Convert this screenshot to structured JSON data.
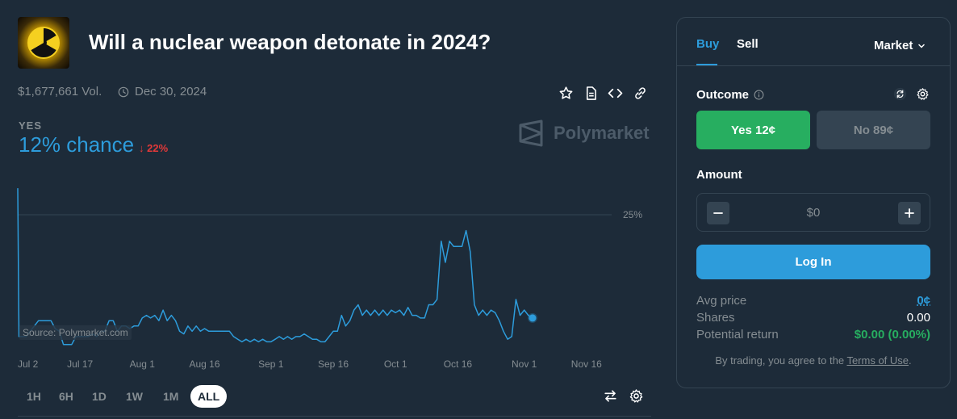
{
  "market": {
    "title": "Will a nuclear weapon detonate in 2024?",
    "volume": "$1,677,661 Vol.",
    "end_date": "Dec 30, 2024",
    "thumbnail_icon": "radiation-icon"
  },
  "toolbar": {
    "icons": [
      "star-icon",
      "document-icon",
      "embed-code-icon",
      "link-icon"
    ]
  },
  "chance": {
    "outcome_label": "YES",
    "value_text": "12% chance",
    "delta_text": "22%",
    "delta_direction": "down"
  },
  "brand": {
    "name": "Polymarket"
  },
  "chart_data": {
    "type": "line",
    "series": [
      {
        "values": [
          [
            0,
            30
          ],
          [
            0.3,
            2
          ],
          [
            2,
            2
          ],
          [
            3,
            3
          ],
          [
            4,
            4
          ],
          [
            5,
            5
          ],
          [
            6,
            5
          ],
          [
            7,
            5
          ],
          [
            8,
            5
          ],
          [
            9,
            3.5
          ],
          [
            10,
            3
          ],
          [
            11,
            0.5
          ],
          [
            12,
            0.5
          ],
          [
            13,
            0.5
          ],
          [
            14,
            2
          ],
          [
            15,
            2
          ],
          [
            16,
            2
          ],
          [
            17,
            2
          ],
          [
            18,
            2.5
          ],
          [
            19,
            2
          ],
          [
            20,
            3
          ],
          [
            21,
            3
          ],
          [
            22,
            5
          ],
          [
            23,
            5
          ],
          [
            24,
            3
          ],
          [
            25,
            4
          ],
          [
            26,
            4
          ],
          [
            27,
            3.5
          ],
          [
            28,
            4
          ],
          [
            29,
            4
          ],
          [
            30,
            5.5
          ],
          [
            31,
            6
          ],
          [
            32,
            5.5
          ],
          [
            33,
            6
          ],
          [
            34,
            5
          ],
          [
            35,
            7
          ],
          [
            36,
            5
          ],
          [
            37,
            6
          ],
          [
            38,
            5
          ],
          [
            39,
            3
          ],
          [
            40,
            2.5
          ],
          [
            41,
            4
          ],
          [
            42,
            3
          ],
          [
            43,
            4
          ],
          [
            44,
            3
          ],
          [
            45,
            3.5
          ],
          [
            46,
            3
          ],
          [
            47,
            3
          ],
          [
            48,
            3
          ],
          [
            49,
            3
          ],
          [
            50,
            3
          ],
          [
            51,
            3
          ],
          [
            52,
            2
          ],
          [
            53,
            1.5
          ],
          [
            54,
            1
          ],
          [
            55,
            1.5
          ],
          [
            56,
            1
          ],
          [
            57,
            1.5
          ],
          [
            58,
            1
          ],
          [
            59,
            1.5
          ],
          [
            60,
            1
          ],
          [
            61,
            1
          ],
          [
            62,
            1.5
          ],
          [
            63,
            2
          ],
          [
            64,
            1.5
          ],
          [
            65,
            2
          ],
          [
            66,
            1.5
          ],
          [
            67,
            2
          ],
          [
            68,
            2
          ],
          [
            69,
            2.5
          ],
          [
            70,
            2
          ],
          [
            71,
            1.5
          ],
          [
            72,
            1.5
          ],
          [
            73,
            1
          ],
          [
            74,
            1
          ],
          [
            75,
            2
          ],
          [
            76,
            3
          ],
          [
            77,
            3
          ],
          [
            78,
            6
          ],
          [
            79,
            4
          ],
          [
            80,
            5
          ],
          [
            81,
            7
          ],
          [
            82,
            8
          ],
          [
            83,
            6
          ],
          [
            84,
            7
          ],
          [
            85,
            6
          ],
          [
            86,
            7
          ],
          [
            87,
            6
          ],
          [
            88,
            7
          ],
          [
            89,
            6
          ],
          [
            90,
            7
          ],
          [
            91,
            6.5
          ],
          [
            92,
            7
          ],
          [
            93,
            6
          ],
          [
            94,
            7.5
          ],
          [
            95,
            6
          ],
          [
            96,
            6
          ],
          [
            97,
            5.5
          ],
          [
            98,
            5.5
          ],
          [
            99,
            8
          ],
          [
            100,
            8
          ],
          [
            101,
            9
          ],
          [
            102,
            20
          ],
          [
            103,
            16
          ],
          [
            104,
            20
          ],
          [
            105,
            19
          ],
          [
            106,
            19
          ],
          [
            107,
            19
          ],
          [
            108,
            22
          ],
          [
            109,
            18
          ],
          [
            110,
            8
          ],
          [
            111,
            6
          ],
          [
            112,
            7
          ],
          [
            113,
            6
          ],
          [
            114,
            7
          ],
          [
            115,
            6.5
          ],
          [
            116,
            5
          ],
          [
            117,
            3
          ],
          [
            118,
            1.5
          ],
          [
            119,
            2
          ],
          [
            120,
            9
          ],
          [
            121,
            6
          ],
          [
            122,
            7
          ],
          [
            123,
            6
          ],
          [
            124,
            5.5
          ]
        ]
      }
    ],
    "x_ticks": [
      "Jul 2",
      "Jul 17",
      "Aug 1",
      "Aug 16",
      "Sep 1",
      "Sep 16",
      "Oct 1",
      "Oct 16",
      "Nov 1",
      "Nov 16"
    ],
    "x_tick_days": [
      0,
      15,
      30,
      45,
      61,
      76,
      91,
      106,
      122,
      137
    ],
    "x_range_days": [
      0,
      145
    ],
    "y_gridline": {
      "value": 25,
      "label": "25%"
    },
    "ylim": [
      0,
      32
    ],
    "grid": "single-horizontal",
    "line_color": "#2d9cdb",
    "source_note": "Source: Polymarket.com"
  },
  "ranges": [
    {
      "label": "1H",
      "active": false
    },
    {
      "label": "6H",
      "active": false
    },
    {
      "label": "1D",
      "active": false
    },
    {
      "label": "1W",
      "active": false
    },
    {
      "label": "1M",
      "active": false
    },
    {
      "label": "ALL",
      "active": true
    }
  ],
  "chart_controls": [
    "swap-icon",
    "gear-icon"
  ],
  "trade": {
    "tabs": {
      "buy": "Buy",
      "sell": "Sell"
    },
    "order_type": "Market",
    "outcome_label": "Outcome",
    "yes_button": "Yes 12¢",
    "no_button": "No 89¢",
    "amount_label": "Amount",
    "amount_value": "$0",
    "login_button": "Log In",
    "rows": {
      "avg_price_label": "Avg price",
      "avg_price_value": "0¢",
      "shares_label": "Shares",
      "shares_value": "0.00",
      "return_label": "Potential return",
      "return_value": "$0.00 (0.00%)"
    },
    "terms_prefix": "By trading, you agree to the ",
    "terms_link": "Terms of Use",
    "terms_suffix": "."
  },
  "colors": {
    "background": "#1d2b39",
    "accent_blue": "#2d9cdb",
    "green": "#27ae60",
    "red": "#e23939",
    "muted": "#858d92"
  }
}
